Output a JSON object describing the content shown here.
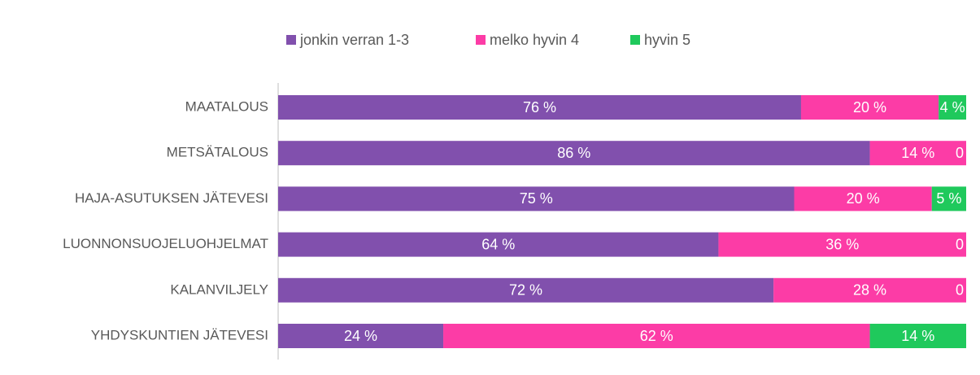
{
  "chart_data": {
    "type": "stacked_bar_horizontal",
    "categories": [
      "MAATALOUS",
      "METSÄTALOUS",
      "HAJA-ASUTUKSEN JÄTEVESI",
      "LUONNONSUOJELUOHJELMAT",
      "KALANVILJELY",
      "YHDYSKUNTIEN JÄTEVESI"
    ],
    "series": [
      {
        "name": "jonkin verran 1-3",
        "color": "#8150ad",
        "values": [
          76,
          86,
          75,
          64,
          72,
          24
        ],
        "value_labels": [
          "76 %",
          "86 %",
          "75 %",
          "64 %",
          "72 %",
          "24 %"
        ]
      },
      {
        "name": "melko hyvin 4",
        "color": "#fc3ca6",
        "values": [
          20,
          14,
          20,
          36,
          28,
          62
        ],
        "value_labels": [
          "20 %",
          "14 %",
          "20 %",
          "36 %",
          "28 %",
          "62 %"
        ]
      },
      {
        "name": "hyvin 5",
        "color": "#1fc95c",
        "values": [
          4,
          0,
          5,
          0,
          0,
          14
        ],
        "value_labels": [
          "4 %",
          "0",
          "5 %",
          "0",
          "0",
          "14 %"
        ]
      }
    ],
    "xlim": [
      0,
      100
    ],
    "legend": "top"
  }
}
